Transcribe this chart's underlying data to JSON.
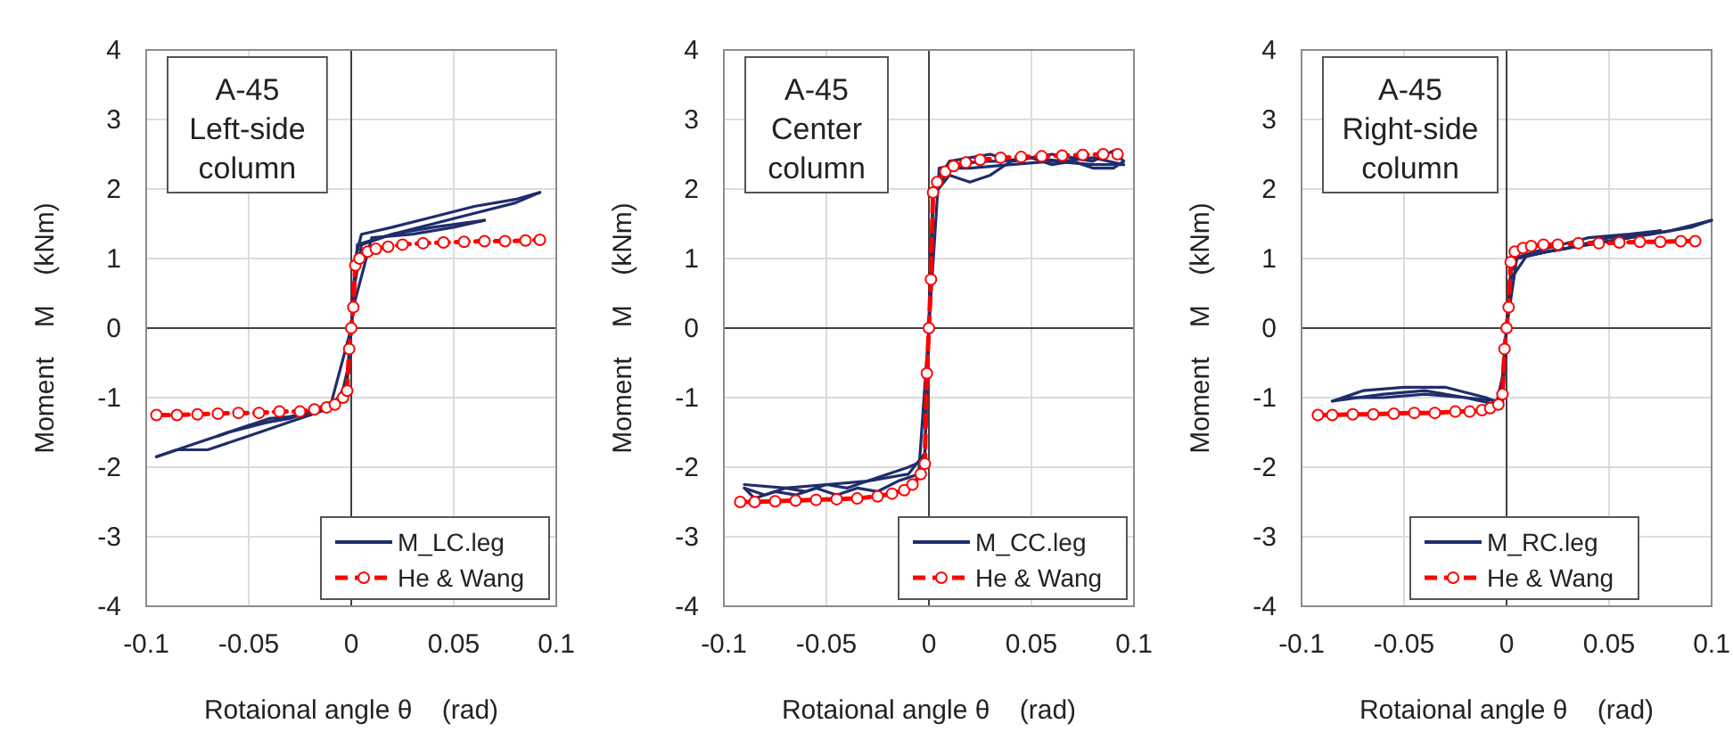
{
  "chart_data": [
    {
      "type": "line",
      "annotations": [
        "A-45\nLeft-side\ncolumn"
      ],
      "xlabel": "Rotaional angle θ    (rad)",
      "ylabel": "Moment    M    (kNm)",
      "xlim": [
        -0.1,
        0.1
      ],
      "ylim": [
        -4,
        4
      ],
      "xticks": [
        -0.1,
        -0.05,
        0,
        0.05,
        0.1
      ],
      "yticks": [
        -4,
        -3,
        -2,
        -1,
        0,
        1,
        2,
        3,
        4
      ],
      "grid": true,
      "legend": "bottom right",
      "series": [
        {
          "name": "M_LC.leg",
          "color": "#1f2d6b",
          "line_style": "solid",
          "marker": "none",
          "x": [
            0,
            0.002,
            0.005,
            0.02,
            0.04,
            0.06,
            0.08,
            0.092
          ],
          "values": [
            0,
            1.0,
            1.35,
            1.45,
            1.6,
            1.75,
            1.85,
            1.95
          ]
        },
        {
          "color": "#1f2d6b",
          "line_style": "solid",
          "marker": "none",
          "x": [
            -0.095,
            -0.08,
            -0.06,
            -0.04,
            -0.02,
            -0.005,
            -0.001,
            0.001,
            0.005,
            0.02,
            0.04,
            0.06,
            0.08,
            0.092
          ],
          "values": [
            -1.85,
            -1.7,
            -1.5,
            -1.35,
            -1.2,
            -1.0,
            -0.5,
            0.5,
            1.2,
            1.35,
            1.5,
            1.65,
            1.8,
            1.95
          ]
        },
        {
          "color": "#1f2d6b",
          "line_style": "solid",
          "marker": "none",
          "x": [
            -0.095,
            -0.085,
            -0.07,
            -0.05,
            -0.03,
            -0.01,
            -0.002,
            0,
            0.003,
            0.02,
            0.04,
            0.065
          ],
          "values": [
            -1.85,
            -1.75,
            -1.75,
            -1.55,
            -1.35,
            -1.15,
            -0.8,
            0,
            1.2,
            1.35,
            1.45,
            1.55
          ]
        },
        {
          "color": "#1f2d6b",
          "line_style": "solid",
          "marker": "none",
          "x": [
            -0.065,
            -0.04,
            -0.02,
            -0.003,
            0.001,
            0.01,
            0.03,
            0.05,
            0.065
          ],
          "values": [
            -1.55,
            -1.3,
            -1.25,
            -1.0,
            0.3,
            1.3,
            1.35,
            1.45,
            1.55
          ]
        },
        {
          "color": "#1f2d6b",
          "line_style": "solid",
          "marker": "none",
          "x": [
            -0.065,
            -0.05,
            -0.03,
            -0.01,
            0
          ],
          "values": [
            -1.55,
            -1.4,
            -1.3,
            -1.1,
            0
          ]
        },
        {
          "name": "He & Wang",
          "color": "#ff0000",
          "line_style": "dashed",
          "marker": "circle",
          "x": [
            -0.095,
            -0.085,
            -0.075,
            -0.065,
            -0.055,
            -0.045,
            -0.035,
            -0.025,
            -0.018,
            -0.012,
            -0.008,
            -0.004,
            -0.002,
            -0.001,
            0,
            0.001,
            0.002,
            0.004,
            0.008,
            0.012,
            0.018,
            0.025,
            0.035,
            0.045,
            0.055,
            0.065,
            0.075,
            0.085,
            0.092
          ],
          "values": [
            -1.25,
            -1.25,
            -1.24,
            -1.23,
            -1.22,
            -1.22,
            -1.2,
            -1.2,
            -1.17,
            -1.14,
            -1.1,
            -1.0,
            -0.9,
            -0.3,
            0,
            0.3,
            0.9,
            1.0,
            1.1,
            1.14,
            1.17,
            1.2,
            1.22,
            1.23,
            1.24,
            1.25,
            1.25,
            1.26,
            1.27
          ]
        }
      ]
    },
    {
      "type": "line",
      "annotations": [
        "A-45\nCenter\ncolumn"
      ],
      "xlabel": "Rotaional angle θ    (rad)",
      "ylabel": "Moment    M    (kNm)",
      "xlim": [
        -0.1,
        0.1
      ],
      "ylim": [
        -4,
        4
      ],
      "xticks": [
        -0.1,
        -0.05,
        0,
        0.05,
        0.1
      ],
      "yticks": [
        -4,
        -3,
        -2,
        -1,
        0,
        1,
        2,
        3,
        4
      ],
      "grid": true,
      "legend": "bottom right",
      "series": [
        {
          "name": "M_CC.leg",
          "color": "#1f2d6b",
          "line_style": "solid",
          "marker": "none",
          "x": [
            0,
            0.002,
            0.01,
            0.02,
            0.03,
            0.04,
            0.05,
            0.06,
            0.07,
            0.08,
            0.09,
            0.095
          ],
          "values": [
            0,
            2.0,
            2.4,
            2.45,
            2.5,
            2.4,
            2.45,
            2.5,
            2.45,
            2.4,
            2.55,
            2.4
          ]
        },
        {
          "color": "#1f2d6b",
          "line_style": "solid",
          "marker": "none",
          "x": [
            -0.09,
            -0.08,
            -0.07,
            -0.06,
            -0.05,
            -0.04,
            -0.03,
            -0.02,
            -0.01,
            -0.002,
            0,
            0.002,
            0.01,
            0.02,
            0.03,
            0.04,
            0.05,
            0.06,
            0.07,
            0.08,
            0.09,
            0.095
          ],
          "values": [
            -2.3,
            -2.4,
            -2.3,
            -2.35,
            -2.25,
            -2.3,
            -2.2,
            -2.1,
            -2.0,
            -1.9,
            0,
            1.9,
            2.2,
            2.1,
            2.2,
            2.4,
            2.45,
            2.35,
            2.4,
            2.3,
            2.3,
            2.4
          ]
        },
        {
          "color": "#1f2d6b",
          "line_style": "solid",
          "marker": "none",
          "x": [
            -0.09,
            -0.085,
            -0.075,
            -0.065,
            -0.055,
            -0.045,
            -0.035,
            -0.025,
            -0.015,
            -0.005,
            0,
            0.005,
            0.015,
            0.025,
            0.035,
            0.05,
            0.065,
            0.08,
            0.095
          ],
          "values": [
            -2.3,
            -2.45,
            -2.35,
            -2.4,
            -2.3,
            -2.4,
            -2.3,
            -2.35,
            -2.2,
            -2.1,
            0,
            2.3,
            2.35,
            2.4,
            2.4,
            2.45,
            2.4,
            2.45,
            2.35
          ]
        },
        {
          "color": "#1f2d6b",
          "line_style": "solid",
          "marker": "none",
          "x": [
            -0.09,
            -0.07,
            -0.05,
            -0.03,
            -0.01,
            -0.002,
            0.002,
            0.01,
            0.02,
            0.04,
            0.06,
            0.08,
            0.095
          ],
          "values": [
            -2.25,
            -2.3,
            -2.25,
            -2.2,
            -2.1,
            -1.8,
            1.9,
            2.3,
            2.3,
            2.35,
            2.4,
            2.35,
            2.35
          ]
        },
        {
          "name": "He & Wang",
          "color": "#ff0000",
          "line_style": "dashed",
          "marker": "circle",
          "x": [
            -0.092,
            -0.085,
            -0.075,
            -0.065,
            -0.055,
            -0.045,
            -0.035,
            -0.025,
            -0.018,
            -0.012,
            -0.008,
            -0.004,
            -0.002,
            -0.001,
            0,
            0.001,
            0.002,
            0.004,
            0.008,
            0.012,
            0.018,
            0.025,
            0.035,
            0.045,
            0.055,
            0.065,
            0.075,
            0.085,
            0.092
          ],
          "values": [
            -2.5,
            -2.5,
            -2.49,
            -2.48,
            -2.47,
            -2.46,
            -2.45,
            -2.42,
            -2.38,
            -2.33,
            -2.25,
            -2.1,
            -1.95,
            -0.65,
            0,
            0.7,
            1.95,
            2.1,
            2.25,
            2.33,
            2.38,
            2.42,
            2.45,
            2.46,
            2.47,
            2.48,
            2.49,
            2.5,
            2.5
          ]
        }
      ]
    },
    {
      "type": "line",
      "annotations": [
        "A-45\nRight-side\ncolumn"
      ],
      "xlabel": "Rotaional angle θ    (rad)",
      "ylabel": "Moment    M    (kNm)",
      "xlim": [
        -0.1,
        0.1
      ],
      "ylim": [
        -4,
        4
      ],
      "xticks": [
        -0.1,
        -0.05,
        0,
        0.05,
        0.1
      ],
      "yticks": [
        -4,
        -3,
        -2,
        -1,
        0,
        1,
        2,
        3,
        4
      ],
      "grid": true,
      "legend": "bottom",
      "series": [
        {
          "name": "M_RC.leg",
          "color": "#1f2d6b",
          "line_style": "solid",
          "marker": "none",
          "x": [
            0,
            0.002,
            0.005,
            0.02,
            0.04,
            0.06,
            0.08,
            0.1
          ],
          "values": [
            0,
            0.8,
            1.0,
            1.1,
            1.2,
            1.3,
            1.4,
            1.55
          ]
        },
        {
          "color": "#1f2d6b",
          "line_style": "solid",
          "marker": "none",
          "x": [
            -0.085,
            -0.06,
            -0.04,
            -0.02,
            -0.005,
            -0.002,
            0.002,
            0.01,
            0.03,
            0.05,
            0.07,
            0.09,
            0.1
          ],
          "values": [
            -1.05,
            -0.95,
            -0.9,
            -1.0,
            -1.1,
            -0.7,
            0.7,
            1.05,
            1.15,
            1.3,
            1.35,
            1.45,
            1.55
          ]
        },
        {
          "color": "#1f2d6b",
          "line_style": "solid",
          "marker": "none",
          "x": [
            -0.085,
            -0.07,
            -0.05,
            -0.03,
            -0.01,
            -0.002,
            0,
            0.003,
            0.02,
            0.04,
            0.06,
            0.075
          ],
          "values": [
            -1.05,
            -0.9,
            -0.85,
            -0.85,
            -1.0,
            -1.1,
            0,
            1.0,
            1.15,
            1.3,
            1.35,
            1.4
          ]
        },
        {
          "color": "#1f2d6b",
          "line_style": "solid",
          "marker": "none",
          "x": [
            -0.08,
            -0.06,
            -0.04,
            -0.02,
            -0.003,
            0,
            0.005,
            0.02,
            0.04,
            0.06,
            0.075
          ],
          "values": [
            -1.0,
            -1.0,
            -0.95,
            -1.0,
            -1.05,
            0,
            1.0,
            1.1,
            1.2,
            1.3,
            1.4
          ]
        },
        {
          "name": "He & Wang",
          "color": "#ff0000",
          "line_style": "dashed",
          "marker": "circle",
          "x": [
            -0.092,
            -0.085,
            -0.075,
            -0.065,
            -0.055,
            -0.045,
            -0.035,
            -0.025,
            -0.018,
            -0.012,
            -0.008,
            -0.004,
            -0.002,
            -0.001,
            0,
            0.001,
            0.002,
            0.004,
            0.008,
            0.012,
            0.018,
            0.025,
            0.035,
            0.045,
            0.055,
            0.065,
            0.075,
            0.085,
            0.092
          ],
          "values": [
            -1.25,
            -1.25,
            -1.24,
            -1.24,
            -1.23,
            -1.22,
            -1.22,
            -1.2,
            -1.2,
            -1.18,
            -1.15,
            -1.1,
            -0.95,
            -0.3,
            0,
            0.3,
            0.95,
            1.1,
            1.15,
            1.18,
            1.2,
            1.2,
            1.22,
            1.22,
            1.23,
            1.24,
            1.24,
            1.25,
            1.25
          ]
        }
      ]
    }
  ]
}
